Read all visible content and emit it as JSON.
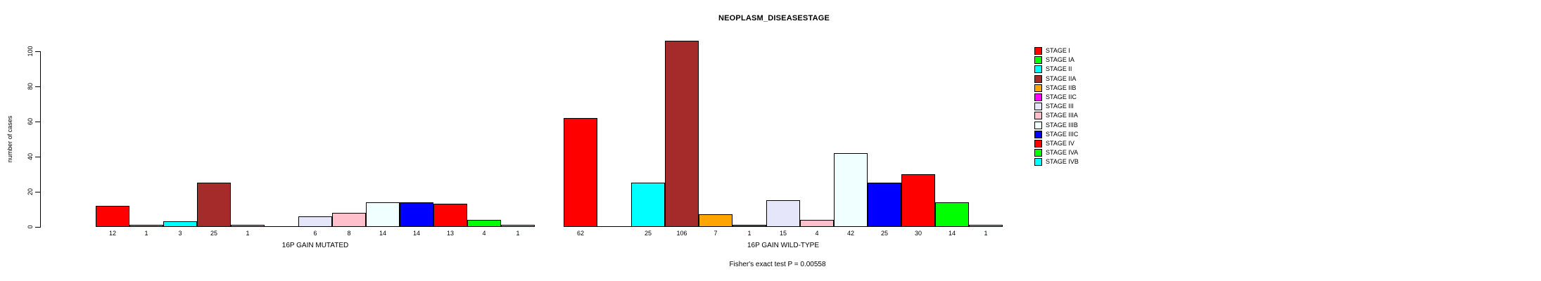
{
  "chart_data": {
    "type": "bar",
    "title": "NEOPLASM_DISEASESTAGE",
    "ylabel": "number of cases",
    "xlabel": "",
    "ylim": [
      0,
      106
    ],
    "yticks": [
      0,
      20,
      40,
      60,
      80,
      100
    ],
    "grid": false,
    "legend_position": "top-right",
    "categories": [
      "STAGE I",
      "STAGE IA",
      "STAGE II",
      "STAGE IIA",
      "STAGE IIB",
      "STAGE IIC",
      "STAGE III",
      "STAGE IIIA",
      "STAGE IIIB",
      "STAGE IIIC",
      "STAGE IV",
      "STAGE IVA",
      "STAGE IVB"
    ],
    "colors": [
      "#ff0000",
      "#00ff00",
      "#00ffff",
      "#a52a2a",
      "#ffa500",
      "#ff00ff",
      "#e6e6fa",
      "#ffc0cb",
      "#f0ffff",
      "#0000ff",
      "#ff0000",
      "#00ff00",
      "#00ffff"
    ],
    "series": [
      {
        "name": "16P GAIN MUTATED",
        "values": [
          12,
          1,
          3,
          25,
          1,
          0,
          6,
          8,
          14,
          14,
          13,
          4,
          1
        ]
      },
      {
        "name": "16P GAIN WILD-TYPE",
        "values": [
          62,
          0,
          25,
          106,
          7,
          1,
          15,
          4,
          42,
          25,
          30,
          14,
          1
        ]
      }
    ],
    "bar_value_labels_shown_for_zero": false,
    "footer": "Fisher's exact test P = 0.00558"
  }
}
